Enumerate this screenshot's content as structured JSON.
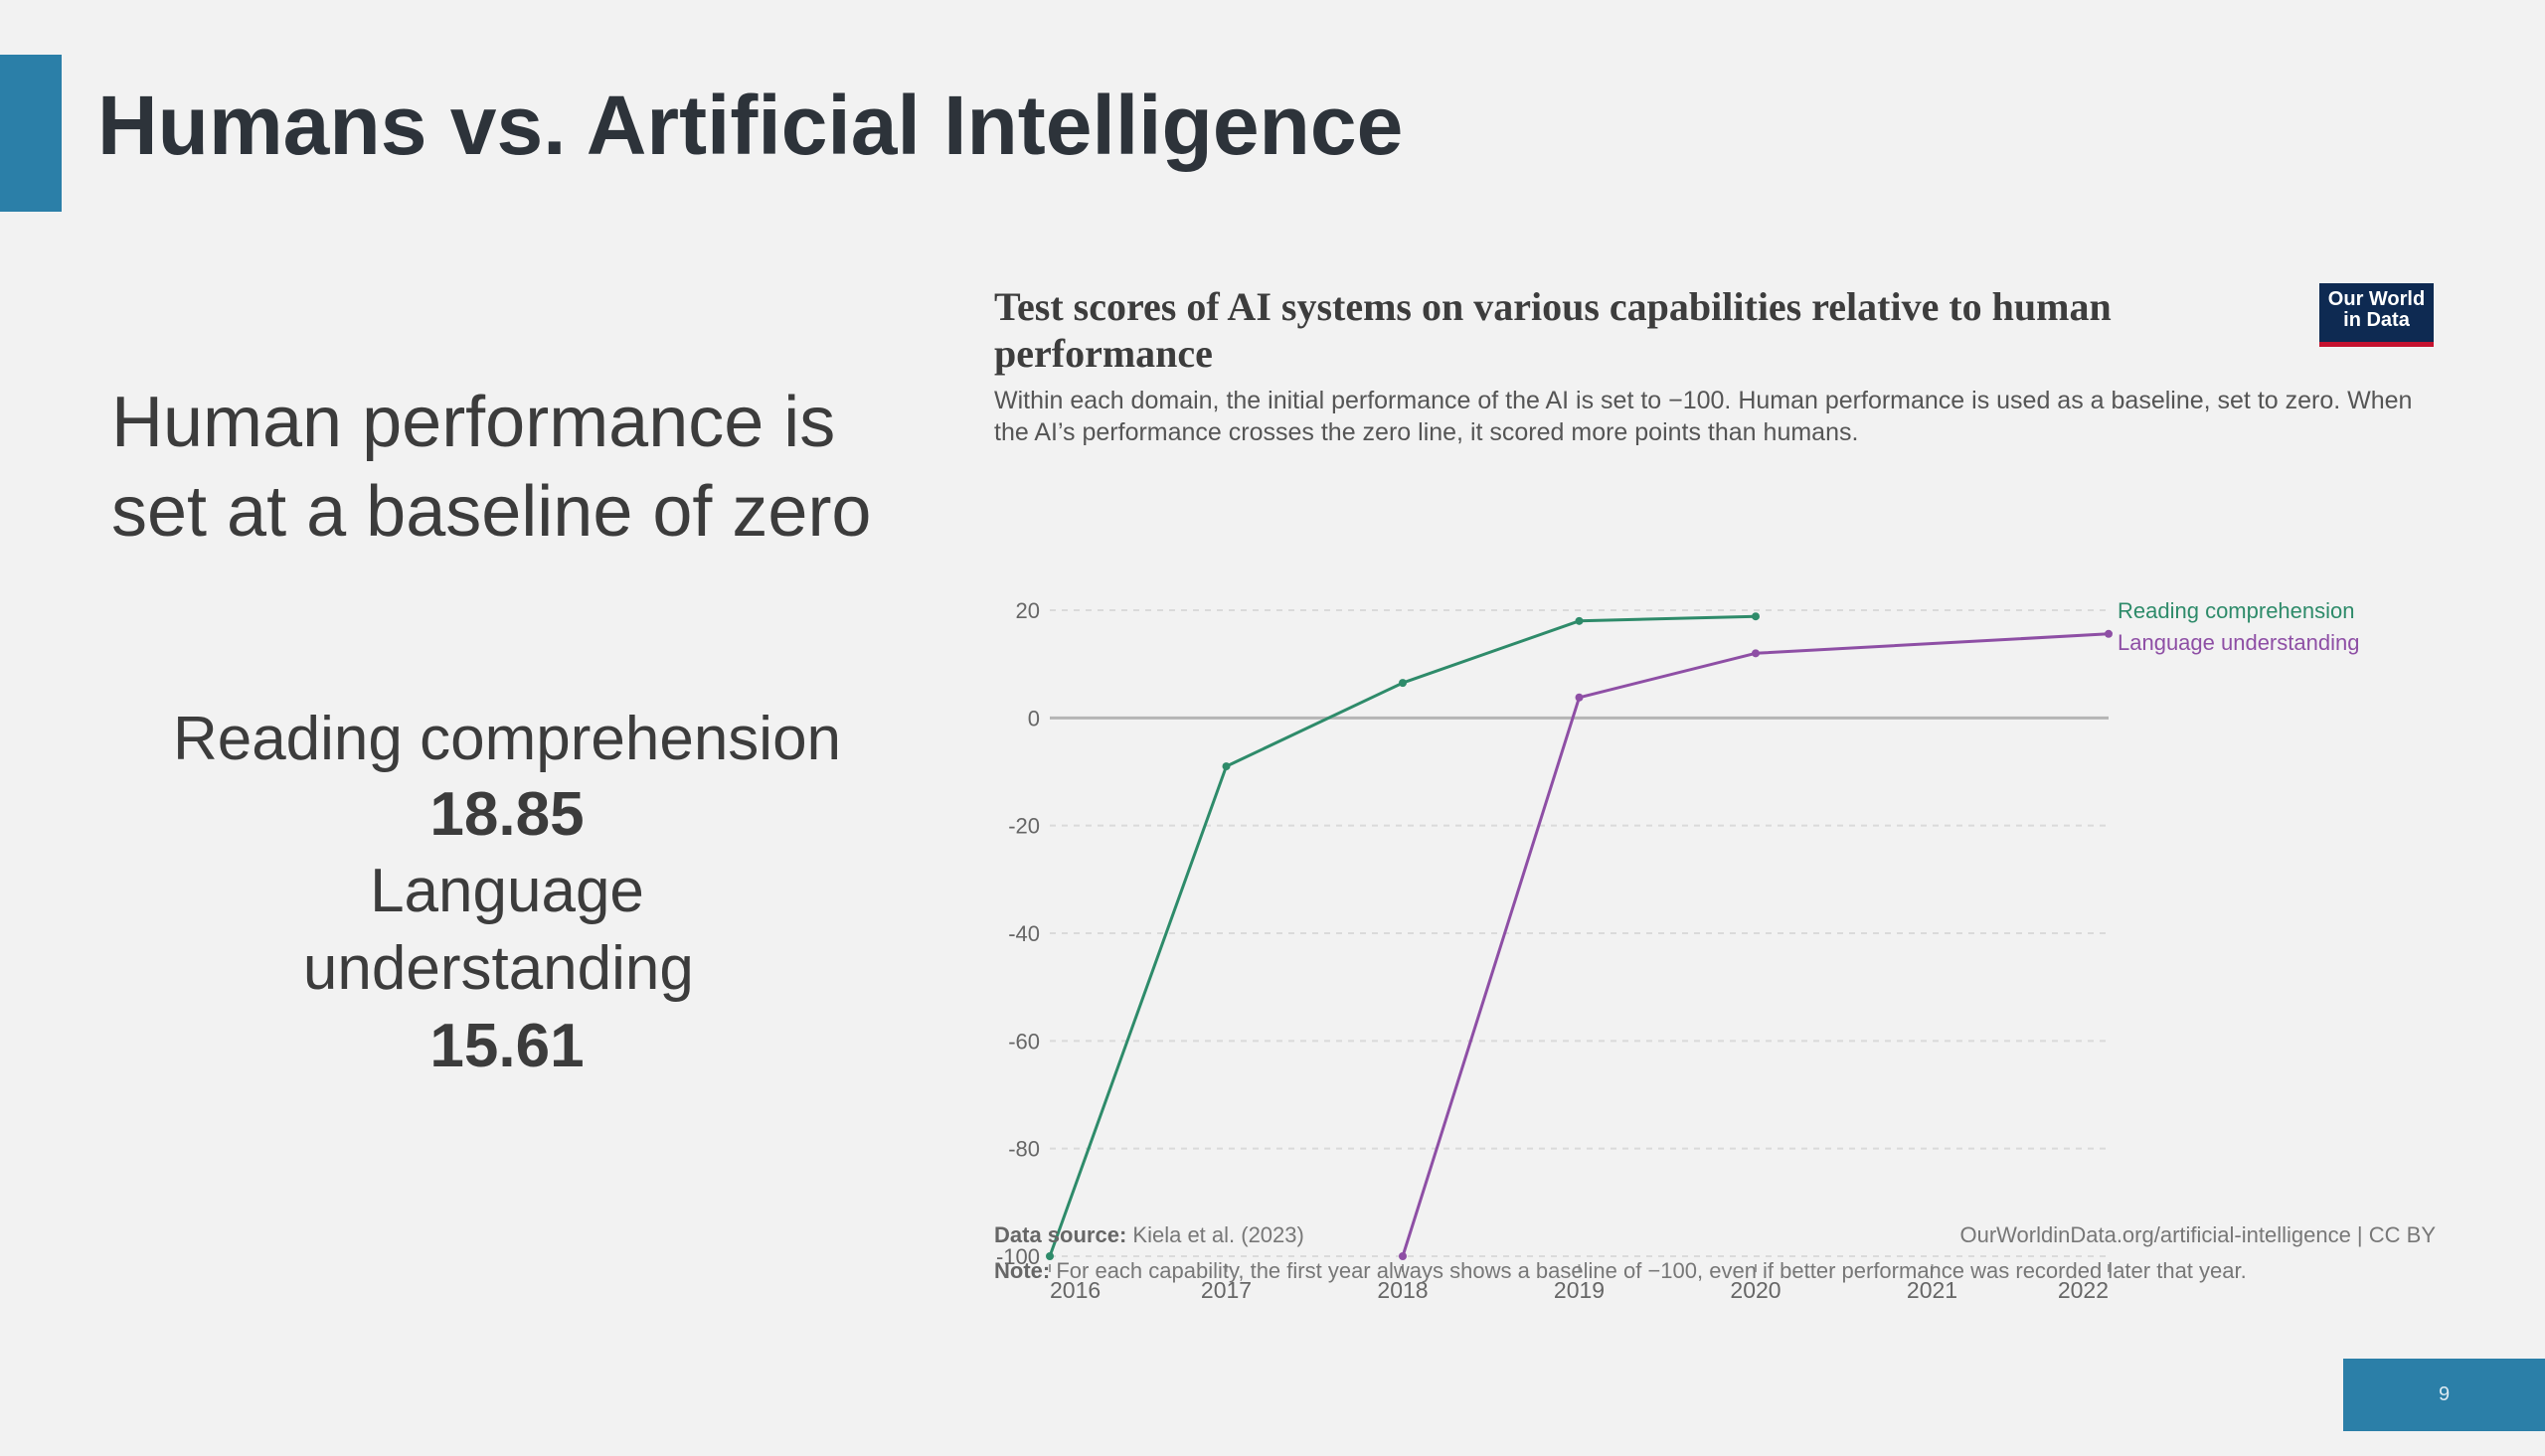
{
  "slide": {
    "title": "Humans vs. Artificial Intelligence",
    "heading": "Human performance is set at a baseline of zero",
    "stats": {
      "reading_label": "Reading comprehension",
      "reading_value": "18.85",
      "language_label": "Language understanding",
      "language_value": "15.61"
    },
    "page_number": "9",
    "accent_color": "#2b7fa8"
  },
  "chart_header": {
    "logo_line1": "Our World",
    "logo_line2": "in Data"
  },
  "chart_footer": {
    "source_label": "Data source:",
    "source_text": "Kiela et al. (2023)",
    "url_text": "OurWorldinData.org/artificial-intelligence | CC BY",
    "note_label": "Note:",
    "note_text": "For each capability, the first year always shows a baseline of −100, even if better performance was recorded later that year."
  },
  "chart_data": {
    "type": "line",
    "title": "Test scores of AI systems on various capabilities relative to human performance",
    "subtitle": "Within each domain, the initial performance of the AI is set to −100. Human performance is used as a baseline, set to zero. When the AI’s performance crosses the zero line, it scored more points than humans.",
    "xlabel": "",
    "ylabel": "",
    "xlim": [
      2016,
      2022
    ],
    "ylim": [
      -100,
      20
    ],
    "x_ticks": [
      "2016",
      "2017",
      "2018",
      "2019",
      "2020",
      "2021",
      "2022"
    ],
    "y_ticks": [
      "20",
      "0",
      "-20",
      "-40",
      "-60",
      "-80",
      "-100"
    ],
    "grid": true,
    "legend_position": "right, line ends",
    "series": [
      {
        "name": "Reading comprehension",
        "color": "#2e8b6a",
        "points": [
          [
            2016,
            -100
          ],
          [
            2017,
            -9
          ],
          [
            2018,
            6.5
          ],
          [
            2019,
            18
          ],
          [
            2020,
            18.85
          ]
        ]
      },
      {
        "name": "Language understanding",
        "color": "#8e4fa5",
        "points": [
          [
            2018,
            -100
          ],
          [
            2019,
            3.8
          ],
          [
            2020,
            12
          ],
          [
            2022,
            15.61
          ]
        ]
      }
    ]
  }
}
